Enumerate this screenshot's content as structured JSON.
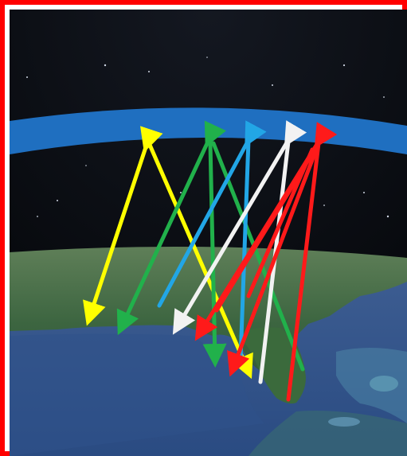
{
  "image": {
    "subject": "satellite-view-earth-with-ionosphere-arrows",
    "colors": {
      "border": "#ff0000",
      "space": "#0b0d12",
      "ionosphere_band": "#1f6fc0",
      "ocean": "#2b4f86",
      "land": "#3f6b3d",
      "arrows": [
        "#ffff00",
        "#21b14b",
        "#22a6e6",
        "#f2f2f2",
        "#ff1a1a"
      ]
    },
    "arrow_groups": [
      {
        "name": "yellow-path",
        "color": "#ffff00"
      },
      {
        "name": "green-path",
        "color": "#21b14b"
      },
      {
        "name": "blue-path",
        "color": "#22a6e6"
      },
      {
        "name": "white-path",
        "color": "#f2f2f2"
      },
      {
        "name": "red-path",
        "color": "#ff1a1a"
      }
    ]
  }
}
